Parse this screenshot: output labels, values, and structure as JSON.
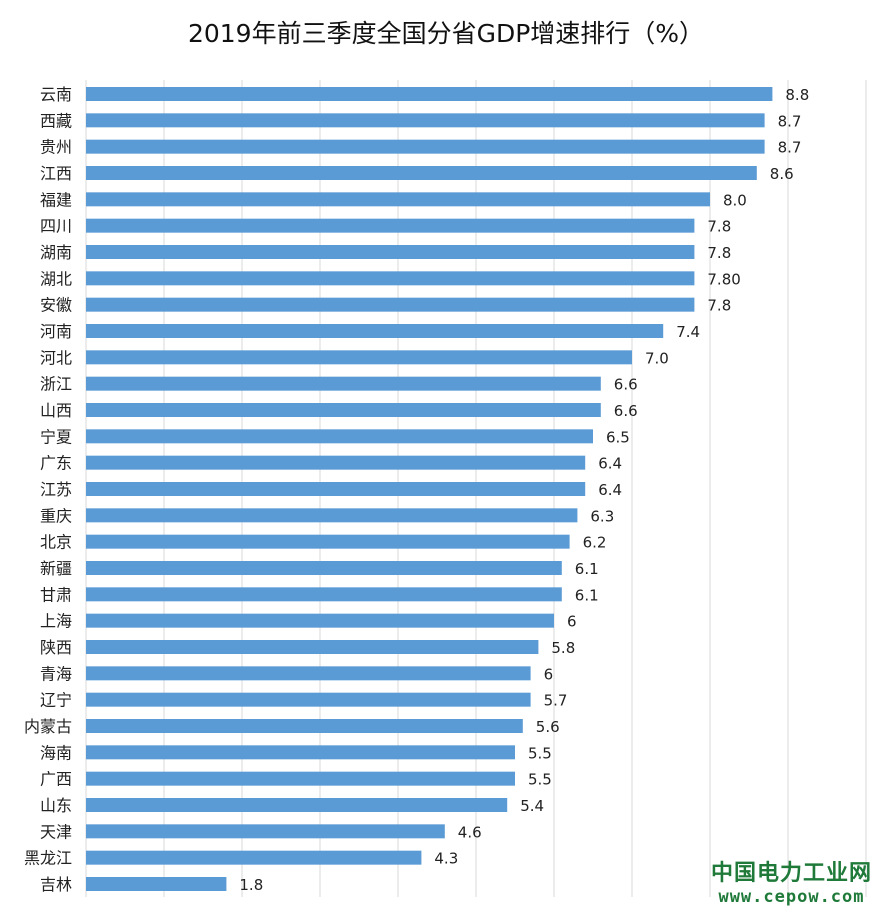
{
  "chart_data": {
    "type": "bar",
    "orientation": "horizontal",
    "title": "2019年前三季度全国分省GDP增速排行（%）",
    "categories": [
      "云南",
      "西藏",
      "贵州",
      "江西",
      "福建",
      "四川",
      "湖南",
      "湖北",
      "安徽",
      "河南",
      "河北",
      "浙江",
      "山西",
      "宁夏",
      "广东",
      "江苏",
      "重庆",
      "北京",
      "新疆",
      "甘肃",
      "上海",
      "陕西",
      "青海",
      "辽宁",
      "内蒙古",
      "海南",
      "广西",
      "山东",
      "天津",
      "黑龙江",
      "吉林"
    ],
    "values": [
      8.8,
      8.7,
      8.7,
      8.6,
      8.0,
      7.8,
      7.8,
      7.8,
      7.8,
      7.4,
      7.0,
      6.6,
      6.6,
      6.5,
      6.4,
      6.4,
      6.3,
      6.2,
      6.1,
      6.1,
      6.0,
      5.8,
      5.7,
      5.7,
      5.6,
      5.5,
      5.5,
      5.4,
      4.6,
      4.3,
      1.8
    ],
    "labels": [
      "8.8",
      "8.7",
      "8.7",
      "8.6",
      "8.0",
      "7.8",
      "7.8",
      "7.80",
      "7.8",
      "7.4",
      "7.0",
      "6.6",
      "6.6",
      "6.5",
      "6.4",
      "6.4",
      "6.3",
      "6.2",
      "6.1",
      "6.1",
      "6",
      "5.8",
      "6",
      "5.7",
      "5.6",
      "5.5",
      "5.5",
      "5.4",
      "4.6",
      "4.3",
      "1.8"
    ],
    "xlim": [
      0,
      10
    ],
    "grid": true,
    "bar_color": "#5b9bd5",
    "gridline_color": "#d9d9d9"
  },
  "watermark": {
    "line1": "中国电力工业网",
    "line2": "www.cepow.com"
  }
}
